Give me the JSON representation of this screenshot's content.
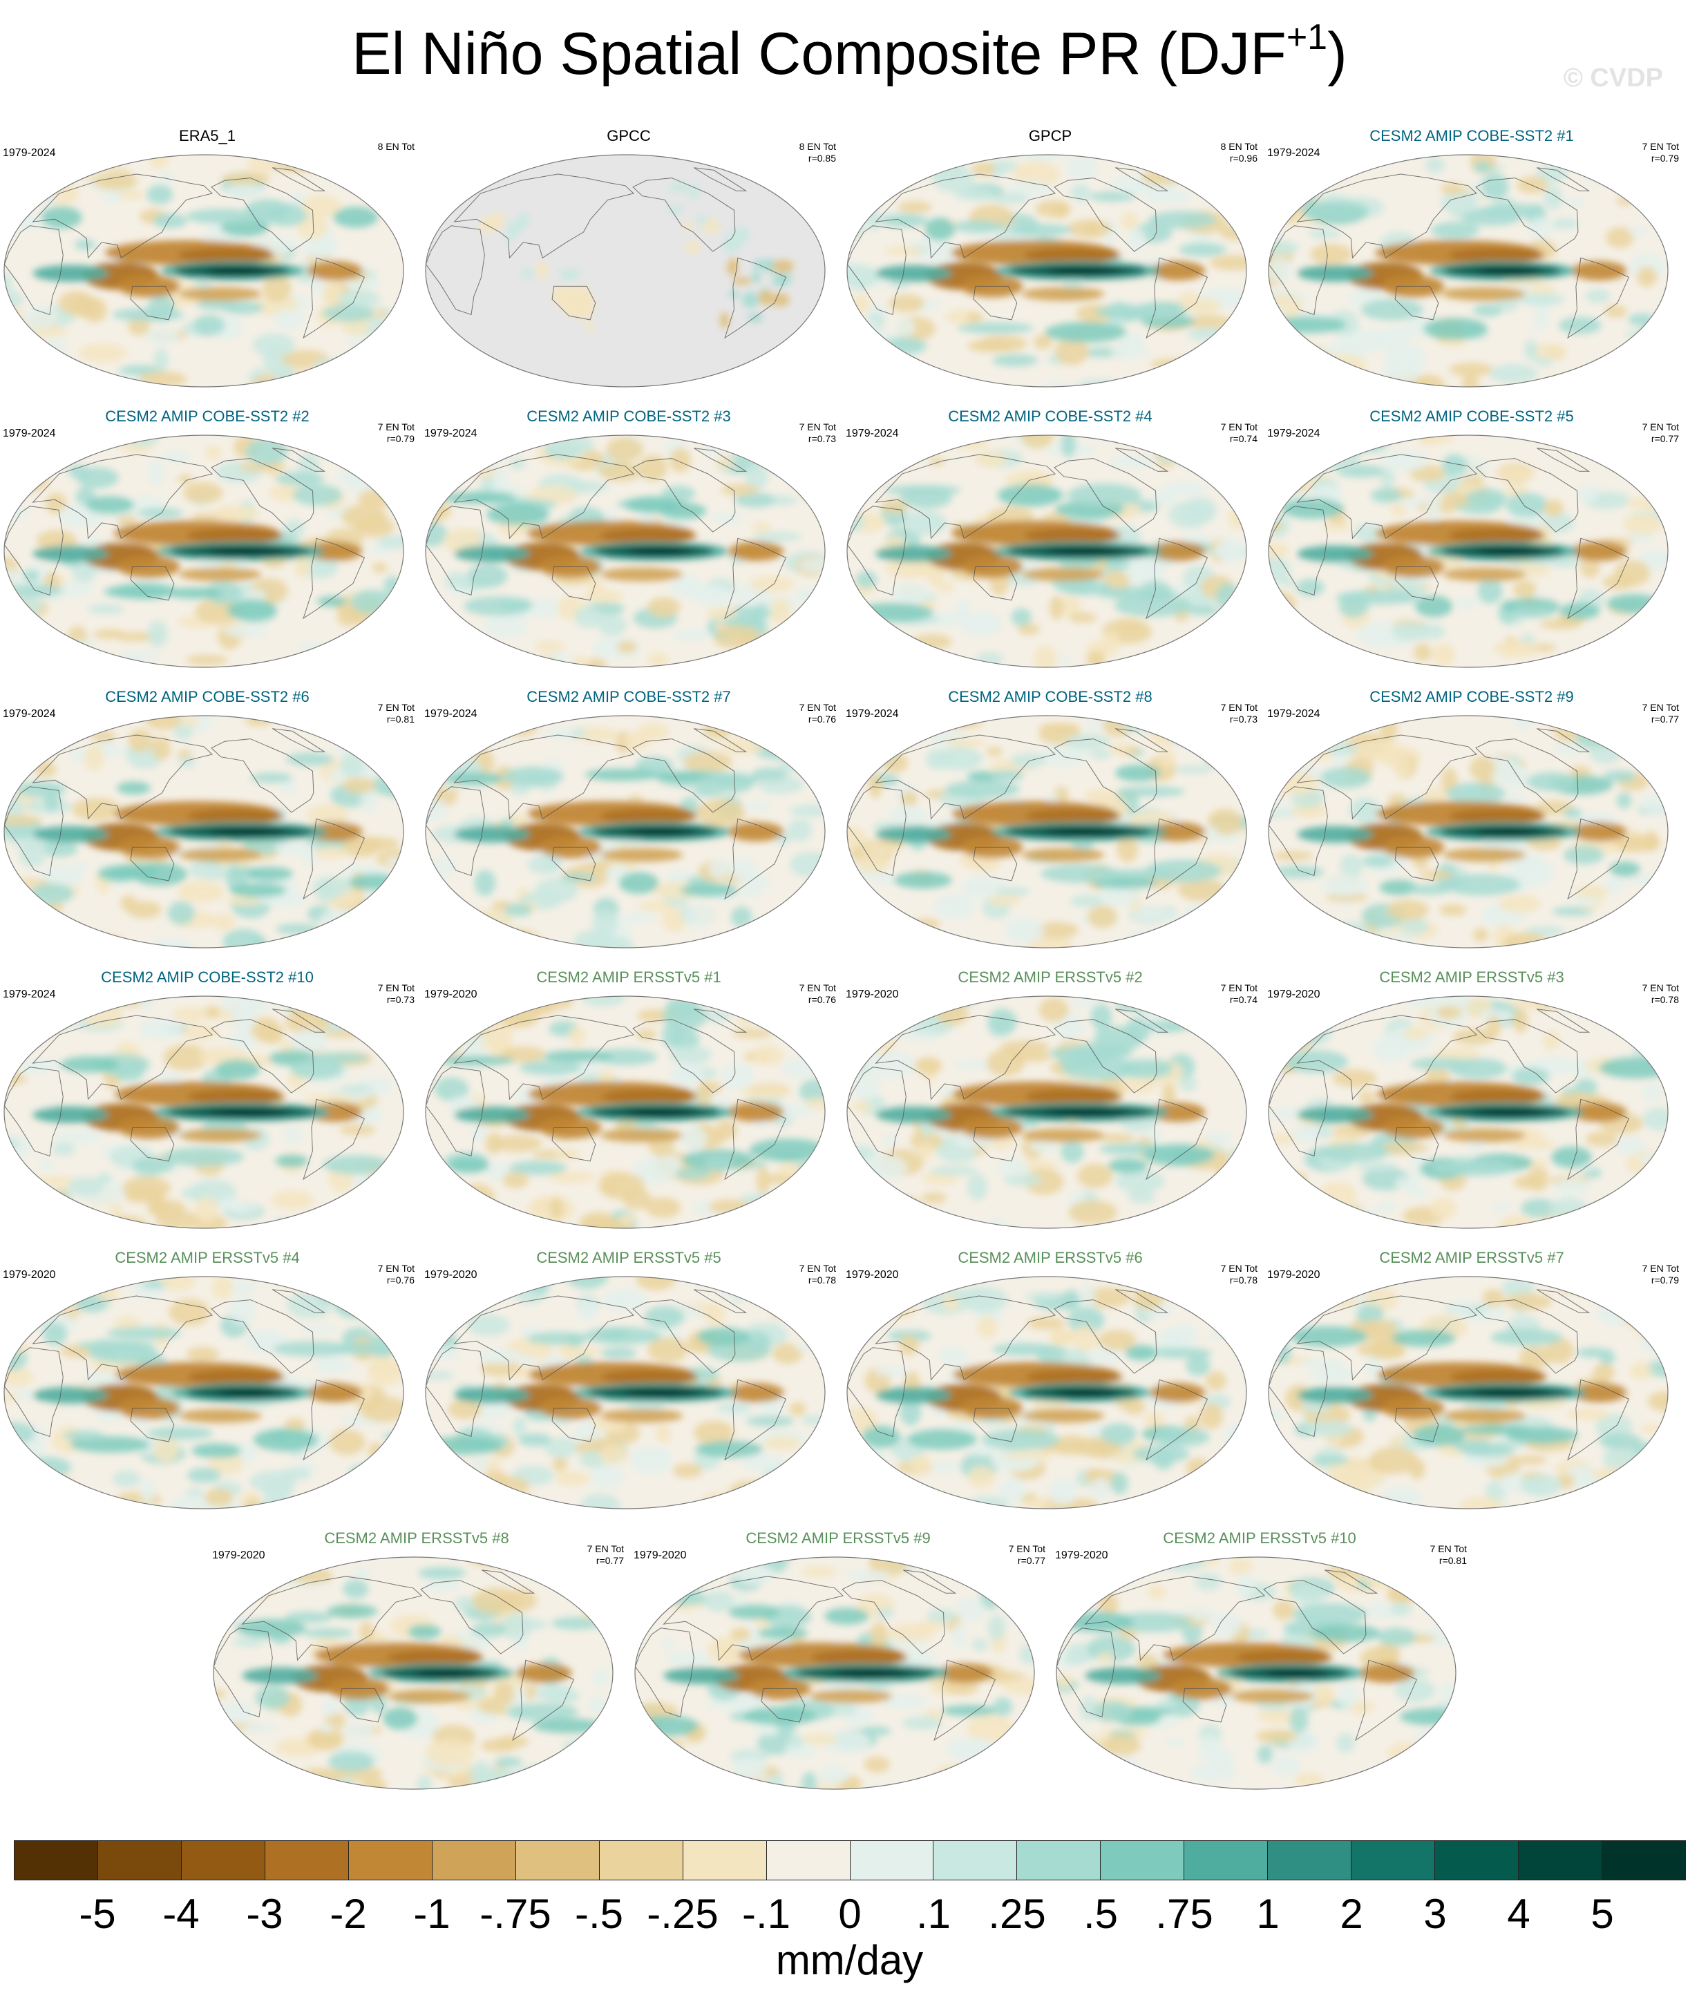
{
  "figure": {
    "title_main": "El Niño Spatial Composite PR (DJF",
    "title_sup": "+1",
    "title_close": ")",
    "watermark": "© CVDP"
  },
  "colors": {
    "obs_title": "#000000",
    "cobe_title": "#006480",
    "ersst_title": "#58905a",
    "land_outline": "#555555",
    "missing": "#e6e6e6"
  },
  "panels": [
    {
      "title": "ERA5_1",
      "years": "1979-2024",
      "stats_line1": "8 EN Tot",
      "stats_line2": "",
      "group": "obs",
      "pattern": 0
    },
    {
      "title": "GPCC",
      "years": "",
      "stats_line1": "8 EN Tot",
      "stats_line2": "r=0.85",
      "group": "obs",
      "pattern": -1
    },
    {
      "title": "GPCP",
      "years": "",
      "stats_line1": "8 EN Tot",
      "stats_line2": "r=0.96",
      "group": "obs",
      "pattern": 1
    },
    {
      "title": "CESM2 AMIP COBE-SST2 #1",
      "years": "1979-2024",
      "stats_line1": "7 EN Tot",
      "stats_line2": "r=0.79",
      "group": "cobe",
      "pattern": 2
    },
    {
      "title": "CESM2 AMIP COBE-SST2 #2",
      "years": "1979-2024",
      "stats_line1": "7 EN Tot",
      "stats_line2": "r=0.79",
      "group": "cobe",
      "pattern": 3
    },
    {
      "title": "CESM2 AMIP COBE-SST2 #3",
      "years": "1979-2024",
      "stats_line1": "7 EN Tot",
      "stats_line2": "r=0.73",
      "group": "cobe",
      "pattern": 4
    },
    {
      "title": "CESM2 AMIP COBE-SST2 #4",
      "years": "1979-2024",
      "stats_line1": "7 EN Tot",
      "stats_line2": "r=0.74",
      "group": "cobe",
      "pattern": 5
    },
    {
      "title": "CESM2 AMIP COBE-SST2 #5",
      "years": "1979-2024",
      "stats_line1": "7 EN Tot",
      "stats_line2": "r=0.77",
      "group": "cobe",
      "pattern": 6
    },
    {
      "title": "CESM2 AMIP COBE-SST2 #6",
      "years": "1979-2024",
      "stats_line1": "7 EN Tot",
      "stats_line2": "r=0.81",
      "group": "cobe",
      "pattern": 7
    },
    {
      "title": "CESM2 AMIP COBE-SST2 #7",
      "years": "1979-2024",
      "stats_line1": "7 EN Tot",
      "stats_line2": "r=0.76",
      "group": "cobe",
      "pattern": 8
    },
    {
      "title": "CESM2 AMIP COBE-SST2 #8",
      "years": "1979-2024",
      "stats_line1": "7 EN Tot",
      "stats_line2": "r=0.73",
      "group": "cobe",
      "pattern": 9
    },
    {
      "title": "CESM2 AMIP COBE-SST2 #9",
      "years": "1979-2024",
      "stats_line1": "7 EN Tot",
      "stats_line2": "r=0.77",
      "group": "cobe",
      "pattern": 10
    },
    {
      "title": "CESM2 AMIP COBE-SST2 #10",
      "years": "1979-2024",
      "stats_line1": "7 EN Tot",
      "stats_line2": "r=0.73",
      "group": "cobe",
      "pattern": 11
    },
    {
      "title": "CESM2 AMIP ERSSTv5 #1",
      "years": "1979-2020",
      "stats_line1": "7 EN Tot",
      "stats_line2": "r=0.76",
      "group": "ersst",
      "pattern": 12
    },
    {
      "title": "CESM2 AMIP ERSSTv5 #2",
      "years": "1979-2020",
      "stats_line1": "7 EN Tot",
      "stats_line2": "r=0.74",
      "group": "ersst",
      "pattern": 13
    },
    {
      "title": "CESM2 AMIP ERSSTv5 #3",
      "years": "1979-2020",
      "stats_line1": "7 EN Tot",
      "stats_line2": "r=0.78",
      "group": "ersst",
      "pattern": 14
    },
    {
      "title": "CESM2 AMIP ERSSTv5 #4",
      "years": "1979-2020",
      "stats_line1": "7 EN Tot",
      "stats_line2": "r=0.76",
      "group": "ersst",
      "pattern": 15
    },
    {
      "title": "CESM2 AMIP ERSSTv5 #5",
      "years": "1979-2020",
      "stats_line1": "7 EN Tot",
      "stats_line2": "r=0.78",
      "group": "ersst",
      "pattern": 16
    },
    {
      "title": "CESM2 AMIP ERSSTv5 #6",
      "years": "1979-2020",
      "stats_line1": "7 EN Tot",
      "stats_line2": "r=0.78",
      "group": "ersst",
      "pattern": 17
    },
    {
      "title": "CESM2 AMIP ERSSTv5 #7",
      "years": "1979-2020",
      "stats_line1": "7 EN Tot",
      "stats_line2": "r=0.79",
      "group": "ersst",
      "pattern": 18
    },
    {
      "title": "CESM2 AMIP ERSSTv5 #8",
      "years": "1979-2020",
      "stats_line1": "7 EN Tot",
      "stats_line2": "r=0.77",
      "group": "ersst",
      "pattern": 19
    },
    {
      "title": "CESM2 AMIP ERSSTv5 #9",
      "years": "1979-2020",
      "stats_line1": "7 EN Tot",
      "stats_line2": "r=0.77",
      "group": "ersst",
      "pattern": 20
    },
    {
      "title": "CESM2 AMIP ERSSTv5 #10",
      "years": "1979-2020",
      "stats_line1": "7 EN Tot",
      "stats_line2": "r=0.81",
      "group": "ersst",
      "pattern": 21
    }
  ],
  "colorbar": {
    "label": "mm/day",
    "ticks": [
      "-5",
      "-4",
      "-3",
      "-2",
      "-1",
      "-.75",
      "-.5",
      "-.25",
      "-.1",
      "0",
      ".1",
      ".25",
      ".5",
      ".75",
      "1",
      "2",
      "3",
      "4",
      "5"
    ],
    "colors": [
      "#543005",
      "#7a4a0c",
      "#935a14",
      "#ae7124",
      "#c18735",
      "#d0a458",
      "#e0c07e",
      "#ead39d",
      "#f4e5c1",
      "#f5f0e6",
      "#e4f0ec",
      "#c9e8e1",
      "#a6dbd1",
      "#7ecbbd",
      "#4fada0",
      "#2f8f82",
      "#137468",
      "#035a4d",
      "#01443a",
      "#003329"
    ]
  }
}
